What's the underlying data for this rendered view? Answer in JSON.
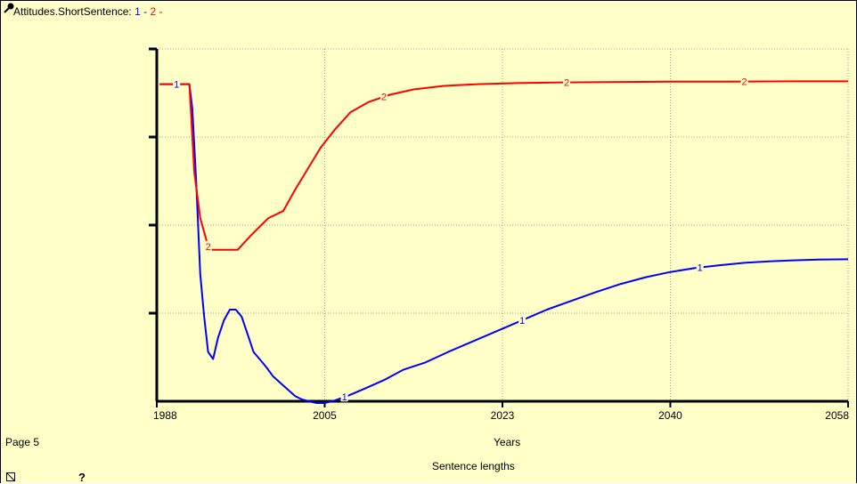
{
  "header": {
    "title": "Attitudes.ShortSentence:",
    "legend": [
      {
        "text": "1 -",
        "color": "#0000ff"
      },
      {
        "text": "2 -",
        "color": "#ff0000"
      }
    ]
  },
  "footer": {
    "page_label": "Page 5",
    "subtitle": "Sentence lengths",
    "help_label": "?"
  },
  "chart_data": {
    "type": "line",
    "xlabel": "Years",
    "x_ticks": [
      1988,
      2005,
      2023,
      2040,
      2058
    ],
    "xlim": [
      1988,
      2058
    ],
    "ylim": [
      0,
      1
    ],
    "y_tick_count": 5,
    "grid": true,
    "series": [
      {
        "name": "1",
        "color": "#0000ff",
        "x": [
          1988.3,
          1991.3,
          1991.6,
          1992.0,
          1992.4,
          1992.8,
          1993.2,
          1993.7,
          1994.2,
          1994.8,
          1995.4,
          1996.0,
          1996.6,
          1997.2,
          1997.8,
          1998.4,
          1999.0,
          1999.8,
          2000.6,
          2001.4,
          2002.0,
          2002.7,
          2003.4,
          2004.2,
          2005.0,
          2006.0,
          2007.3,
          2009.0,
          2011.0,
          2013.0,
          2015.2,
          2017.5,
          2020.0,
          2022.5,
          2025.0,
          2027.5,
          2030.0,
          2032.5,
          2035.0,
          2037.5,
          2040.0,
          2042.5,
          2045.0,
          2047.5,
          2050.0,
          2052.5,
          2055.0,
          2058.0
        ],
        "y": [
          0.9,
          0.9,
          0.83,
          0.62,
          0.36,
          0.24,
          0.14,
          0.12,
          0.18,
          0.23,
          0.26,
          0.26,
          0.24,
          0.19,
          0.14,
          0.12,
          0.1,
          0.07,
          0.05,
          0.03,
          0.015,
          0.005,
          0.0,
          -0.005,
          -0.005,
          0.002,
          0.015,
          0.035,
          0.06,
          0.09,
          0.11,
          0.14,
          0.17,
          0.2,
          0.23,
          0.26,
          0.285,
          0.31,
          0.333,
          0.352,
          0.367,
          0.378,
          0.386,
          0.393,
          0.397,
          0.4,
          0.402,
          0.403
        ],
        "markers_x": [
          1990.0,
          2007.0,
          2025.0,
          2043.0
        ]
      },
      {
        "name": "2",
        "color": "#ff0000",
        "x": [
          1988.3,
          1991.3,
          1991.8,
          1992.4,
          1993.1,
          1993.3,
          1996.2,
          1997.5,
          1999.3,
          2000.8,
          2002.0,
          2003.3,
          2004.6,
          2006.0,
          2007.6,
          2009.5,
          2011.6,
          2014.0,
          2017.0,
          2020.5,
          2024.5,
          2029.0,
          2034.0,
          2040.0,
          2046.0,
          2052.0,
          2058.0
        ],
        "y": [
          0.9,
          0.9,
          0.65,
          0.52,
          0.45,
          0.43,
          0.43,
          0.47,
          0.52,
          0.54,
          0.6,
          0.66,
          0.72,
          0.77,
          0.82,
          0.85,
          0.87,
          0.885,
          0.895,
          0.9,
          0.903,
          0.905,
          0.906,
          0.907,
          0.907,
          0.908,
          0.908
        ],
        "markers_x": [
          1993.2,
          2011.0,
          2029.5,
          2047.5
        ]
      }
    ]
  }
}
